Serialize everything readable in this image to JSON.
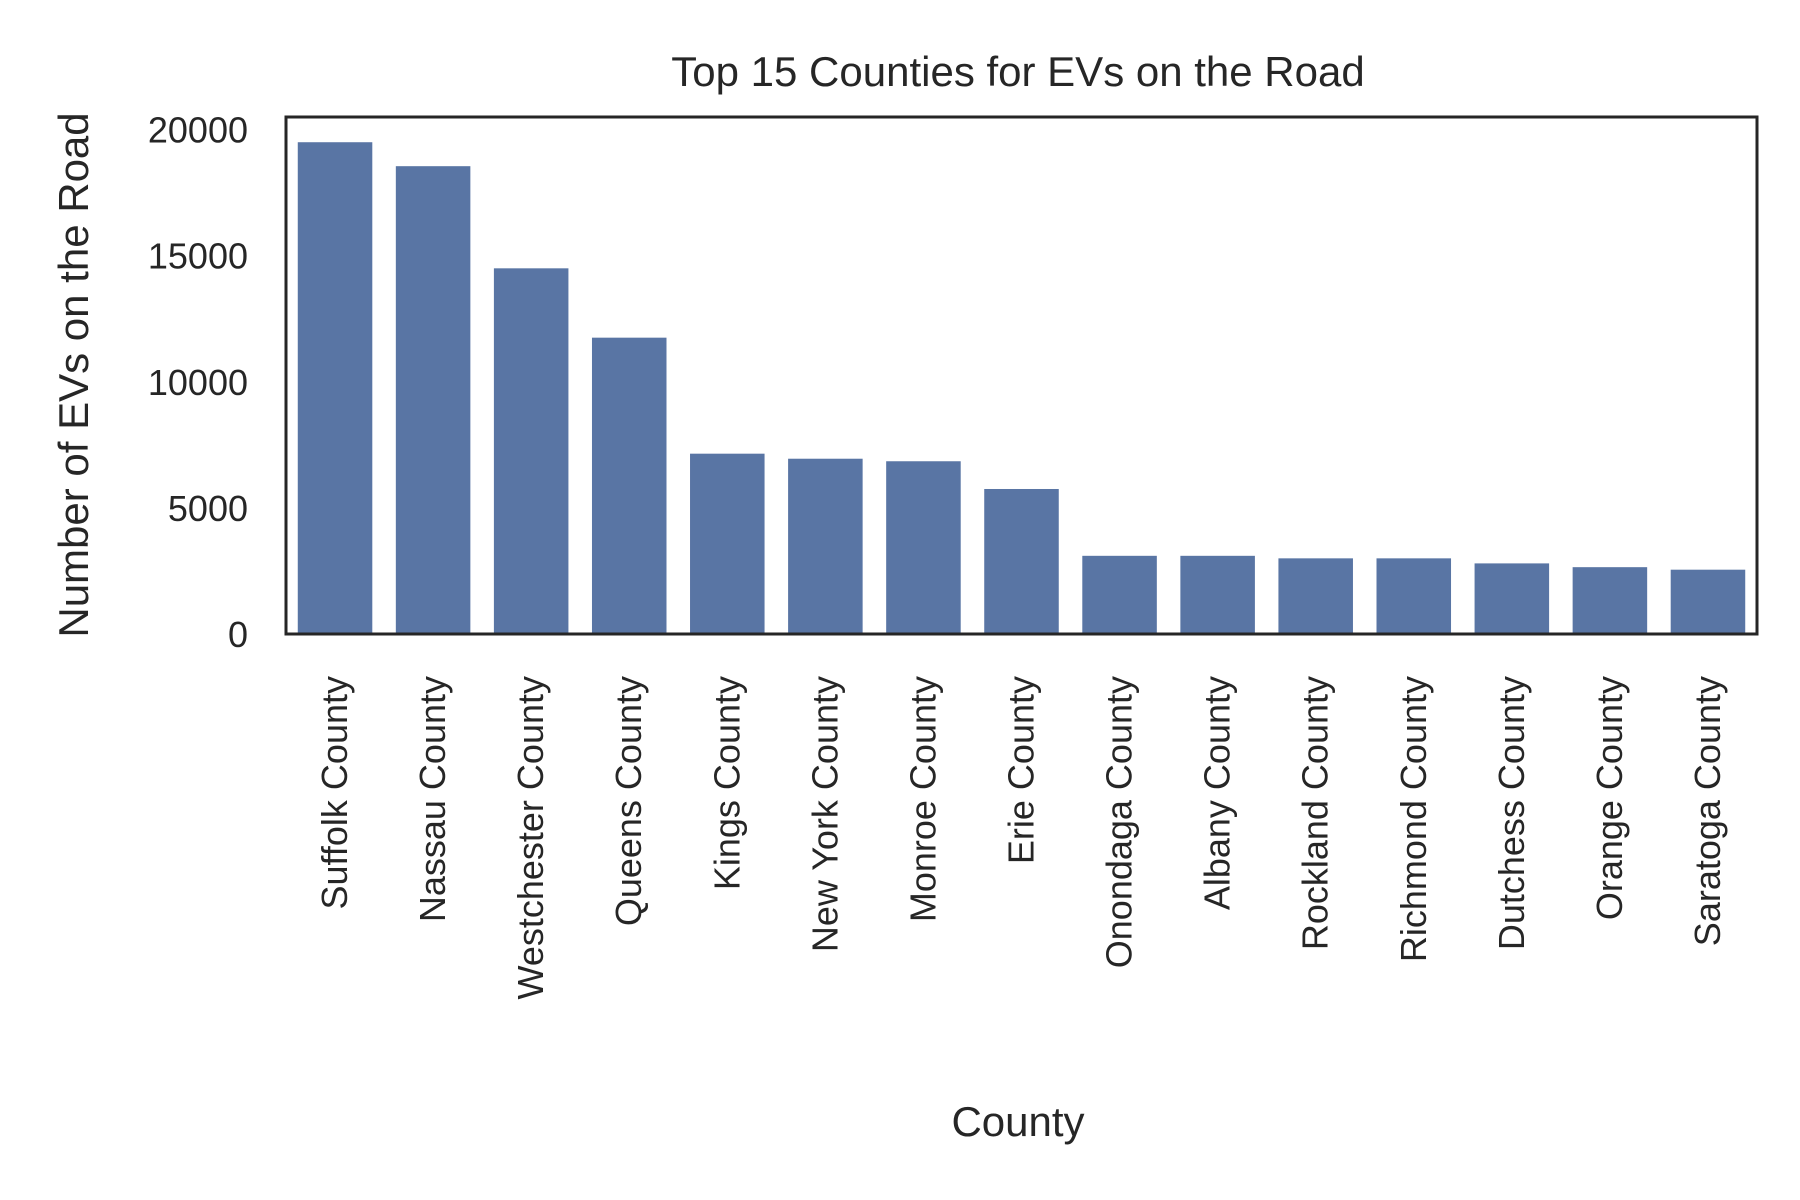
{
  "chart_data": {
    "type": "bar",
    "title": "Top 15 Counties for EVs on the Road",
    "xlabel": "County",
    "ylabel": "Number of EVs on the Road",
    "ylim": [
      0,
      20500
    ],
    "yticks": [
      0,
      5000,
      10000,
      15000,
      20000
    ],
    "grid": false,
    "legend": "none",
    "categories": [
      "Suffolk County",
      "Nassau County",
      "Westchester County",
      "Queens County",
      "Kings County",
      "New York County",
      "Monroe County",
      "Erie County",
      "Onondaga County",
      "Albany County",
      "Rockland County",
      "Richmond County",
      "Dutchess County",
      "Orange County",
      "Saratoga County"
    ],
    "values": [
      19500,
      18550,
      14500,
      11750,
      7150,
      6950,
      6850,
      5750,
      3100,
      3100,
      3000,
      3000,
      2800,
      2650,
      2550
    ],
    "colors": {
      "bar": "#5975a4",
      "axis": "#262626",
      "text": "#262626"
    }
  }
}
